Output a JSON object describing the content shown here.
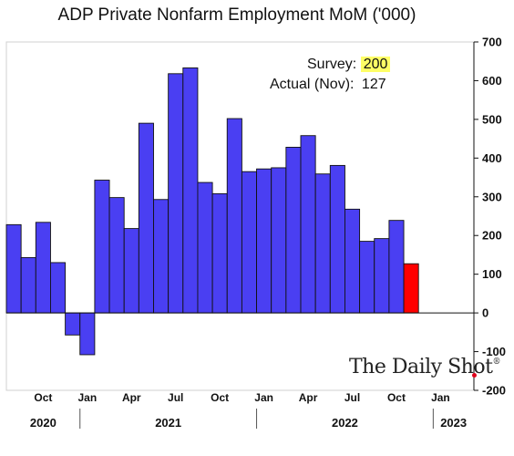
{
  "chart_data": {
    "type": "bar",
    "title": "ADP Private Nonfarm Employment MoM ('000)",
    "ylim": [
      -200,
      700
    ],
    "yticks": [
      -200,
      -100,
      0,
      100,
      200,
      300,
      400,
      500,
      600,
      700
    ],
    "categories": [
      "Aug 2020",
      "Sep 2020",
      "Oct 2020",
      "Nov 2020",
      "Dec 2020",
      "Jan 2021",
      "Feb 2021",
      "Mar 2021",
      "Apr 2021",
      "May 2021",
      "Jun 2021",
      "Jul 2021",
      "Aug 2021",
      "Sep 2021",
      "Oct 2021",
      "Nov 2021",
      "Dec 2021",
      "Jan 2022",
      "Feb 2022",
      "Mar 2022",
      "Apr 2022",
      "May 2022",
      "Jun 2022",
      "Jul 2022",
      "Aug 2022",
      "Sep 2022",
      "Oct 2022",
      "Nov 2022"
    ],
    "values": [
      228,
      143,
      234,
      130,
      -57,
      -108,
      343,
      298,
      218,
      490,
      293,
      618,
      633,
      337,
      308,
      502,
      365,
      372,
      375,
      428,
      458,
      359,
      381,
      268,
      185,
      192,
      239,
      127
    ],
    "bar_color": "#4a3ff2",
    "highlight_color": "#ff0000",
    "highlight_index": 27,
    "month_ticks": [
      {
        "label": "Oct",
        "index": 2
      },
      {
        "label": "Jan",
        "index": 5
      },
      {
        "label": "Apr",
        "index": 8
      },
      {
        "label": "Jul",
        "index": 11
      },
      {
        "label": "Oct",
        "index": 14
      },
      {
        "label": "Jan",
        "index": 17
      },
      {
        "label": "Apr",
        "index": 20
      },
      {
        "label": "Jul",
        "index": 23
      },
      {
        "label": "Oct",
        "index": 26
      },
      {
        "label": "Jan",
        "index": 29
      }
    ],
    "years": [
      {
        "label": "2020",
        "from": 0,
        "to": 4
      },
      {
        "label": "2021",
        "from": 5,
        "to": 16
      },
      {
        "label": "2022",
        "from": 17,
        "to": 28
      },
      {
        "label": "2023",
        "from": 29,
        "to": 31
      }
    ],
    "x_domain_months": 32,
    "annotations": {
      "survey_label": "Survey:",
      "survey_value": "200",
      "actual_label": "Actual (Nov):",
      "actual_value": "127"
    }
  },
  "watermark": "The Daily Shot",
  "watermark_mark": "®"
}
